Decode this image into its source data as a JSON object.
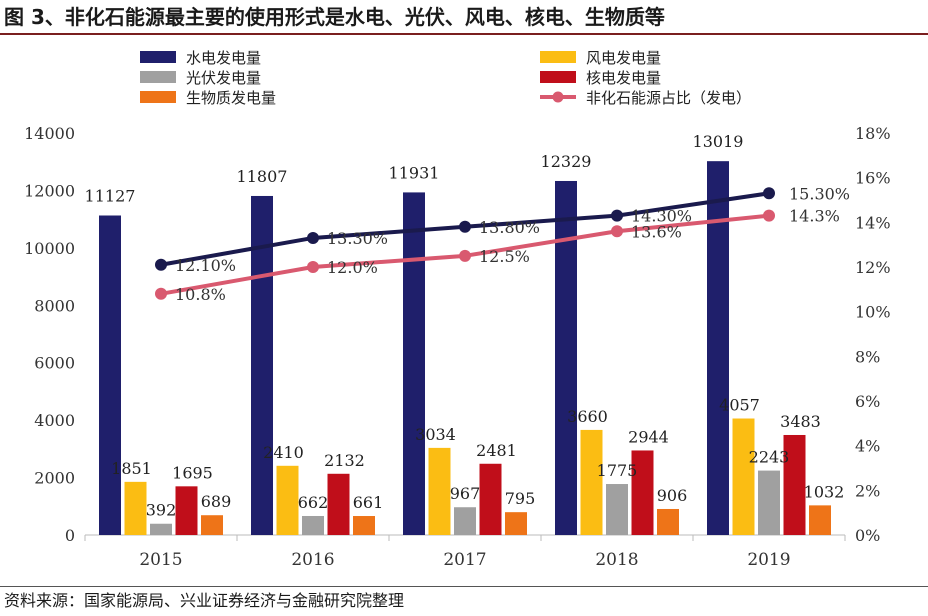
{
  "figure": {
    "title": "图 3、非化石能源最主要的使用形式是水电、光伏、风电、核电、生物质等",
    "source": "资料来源：国家能源局、兴业证券经济与金融研究院整理"
  },
  "chart_data": {
    "type": "bar",
    "categories": [
      "2015",
      "2016",
      "2017",
      "2018",
      "2019"
    ],
    "ylim": [
      0,
      14000
    ],
    "yticks": [
      "0",
      "2000",
      "4000",
      "6000",
      "8000",
      "10000",
      "12000",
      "14000"
    ],
    "y2lim": [
      0,
      18
    ],
    "y2ticks": [
      "0%",
      "2%",
      "4%",
      "6%",
      "8%",
      "10%",
      "12%",
      "14%",
      "16%",
      "18%"
    ],
    "legend_position": "top",
    "series": [
      {
        "name": "水电发电量",
        "kind": "bar",
        "color": "#1f1f6b",
        "values": [
          11127,
          11807,
          11931,
          12329,
          13019
        ],
        "labels": [
          "11127",
          "11807",
          "11931",
          "12329",
          "13019"
        ]
      },
      {
        "name": "风电发电量",
        "kind": "bar",
        "color": "#fbbd13",
        "values": [
          1851,
          2410,
          3034,
          3660,
          4057
        ],
        "labels": [
          "1851",
          "2410",
          "3034",
          "3660",
          "4057"
        ]
      },
      {
        "name": "光伏发电量",
        "kind": "bar",
        "color": "#a0a0a0",
        "values": [
          392,
          662,
          967,
          1775,
          2243
        ],
        "labels": [
          "392",
          "662",
          "967",
          "1775",
          "2243"
        ]
      },
      {
        "name": "核电发电量",
        "kind": "bar",
        "color": "#c00e1a",
        "values": [
          1695,
          2132,
          2481,
          2944,
          3483
        ],
        "labels": [
          "1695",
          "2132",
          "2481",
          "2944",
          "3483"
        ]
      },
      {
        "name": "生物质发电量",
        "kind": "bar",
        "color": "#ee7418",
        "values": [
          689,
          661,
          795,
          906,
          1032
        ],
        "labels": [
          "689",
          "661",
          "795",
          "906",
          "1032"
        ]
      },
      {
        "name": "非化石能源占比（发电）",
        "kind": "line",
        "axis": "right",
        "color": "#d9596f",
        "values": [
          10.8,
          12.0,
          12.5,
          13.6,
          14.3
        ],
        "labels": [
          "10.8%",
          "12.0%",
          "12.5%",
          "13.6%",
          "14.3%"
        ]
      },
      {
        "kind": "line",
        "axis": "right",
        "color": "#1a1a4d",
        "values": [
          12.1,
          13.3,
          13.8,
          14.3,
          15.3
        ],
        "labels": [
          "12.10%",
          "13.30%",
          "13.80%",
          "14.30%",
          "15.30%"
        ]
      }
    ]
  }
}
